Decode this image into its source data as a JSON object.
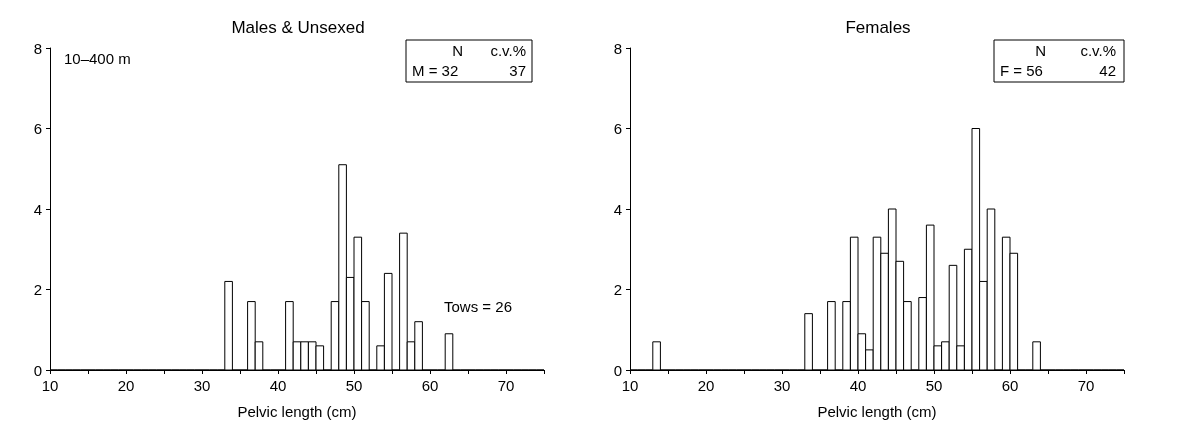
{
  "chart_data": [
    {
      "type": "histogram",
      "title": "Males & Unsexed",
      "xlabel": "Pelvic length (cm)",
      "bins": [
        10,
        11,
        12,
        13,
        14,
        15,
        16,
        17,
        18,
        19,
        20,
        21,
        22,
        23,
        24,
        25,
        26,
        27,
        28,
        29,
        30,
        31,
        32,
        33,
        34,
        35,
        36,
        37,
        38,
        39,
        40,
        41,
        42,
        43,
        44,
        45,
        46,
        47,
        48,
        49,
        50,
        51,
        52,
        53,
        54,
        55,
        56,
        57,
        58,
        59,
        60,
        61,
        62,
        63,
        64,
        65,
        66,
        67,
        68,
        69,
        70,
        71,
        72,
        73,
        74,
        75
      ],
      "values": [
        0,
        0,
        0,
        0,
        0,
        0,
        0,
        0,
        0,
        0,
        0,
        0,
        0,
        0,
        0,
        0,
        0,
        0,
        0,
        0,
        0,
        0,
        0,
        2.2,
        0,
        0,
        1.7,
        0.7,
        0,
        0,
        0,
        1.7,
        0.7,
        0.7,
        0.7,
        0.6,
        0,
        1.7,
        5.1,
        2.3,
        3.3,
        1.7,
        0,
        0.6,
        2.4,
        0,
        3.4,
        0.7,
        1.2,
        0,
        0,
        0,
        0.9,
        0,
        0,
        0,
        0,
        0,
        0,
        0,
        0,
        0,
        0,
        0,
        0
      ],
      "color": "#ffffff",
      "xlim": [
        10,
        75
      ],
      "xticks": [
        10,
        {
          "value": 15,
          "label": null
        },
        20,
        {
          "value": 25,
          "label": null
        },
        30,
        {
          "value": 35,
          "label": null
        },
        40,
        {
          "value": 45,
          "label": null
        },
        50,
        {
          "value": 55,
          "label": null
        },
        60,
        {
          "value": 65,
          "label": null
        },
        70,
        {
          "value": 75,
          "label": null
        }
      ],
      "ylim": [
        0,
        8
      ],
      "yticks": [
        0,
        2,
        4,
        6,
        8
      ],
      "grid": false,
      "annotations": [
        "10–400 m",
        "N",
        "c.v.%",
        "M = 32",
        "37",
        "Tows = 26"
      ]
    },
    {
      "type": "histogram",
      "title": "Females",
      "xlabel": "Pelvic length (cm)",
      "bins": [
        10,
        11,
        12,
        13,
        14,
        15,
        16,
        17,
        18,
        19,
        20,
        21,
        22,
        23,
        24,
        25,
        26,
        27,
        28,
        29,
        30,
        31,
        32,
        33,
        34,
        35,
        36,
        37,
        38,
        39,
        40,
        41,
        42,
        43,
        44,
        45,
        46,
        47,
        48,
        49,
        50,
        51,
        52,
        53,
        54,
        55,
        56,
        57,
        58,
        59,
        60,
        61,
        62,
        63,
        64,
        65,
        66,
        67,
        68,
        69,
        70,
        71,
        72,
        73,
        74,
        75
      ],
      "values": [
        0,
        0,
        0,
        0.7,
        0,
        0,
        0,
        0,
        0,
        0,
        0,
        0,
        0,
        0,
        0,
        0,
        0,
        0,
        0,
        0,
        0,
        0,
        0,
        1.4,
        0,
        0,
        1.7,
        0,
        1.7,
        3.3,
        0.9,
        0.5,
        3.3,
        2.9,
        4.0,
        2.7,
        1.7,
        0,
        1.8,
        3.6,
        0.6,
        0.7,
        2.6,
        0.6,
        3.0,
        6.0,
        2.2,
        4.0,
        0,
        3.3,
        2.9,
        0,
        0,
        0.7,
        0,
        0,
        0,
        0,
        0,
        0,
        0,
        0,
        0,
        0,
        0
      ],
      "color": "#ffffff",
      "xlim": [
        10,
        75
      ],
      "xticks": [
        10,
        {
          "value": 15,
          "label": null
        },
        20,
        {
          "value": 25,
          "label": null
        },
        30,
        {
          "value": 35,
          "label": null
        },
        40,
        {
          "value": 45,
          "label": null
        },
        50,
        {
          "value": 55,
          "label": null
        },
        60,
        {
          "value": 65,
          "label": null
        },
        70,
        {
          "value": 75,
          "label": null
        }
      ],
      "ylim": [
        0,
        8
      ],
      "yticks": [
        0,
        2,
        4,
        6,
        8
      ],
      "grid": false,
      "annotations": [
        "N",
        "c.v.%",
        "F = 56",
        "42"
      ]
    }
  ]
}
